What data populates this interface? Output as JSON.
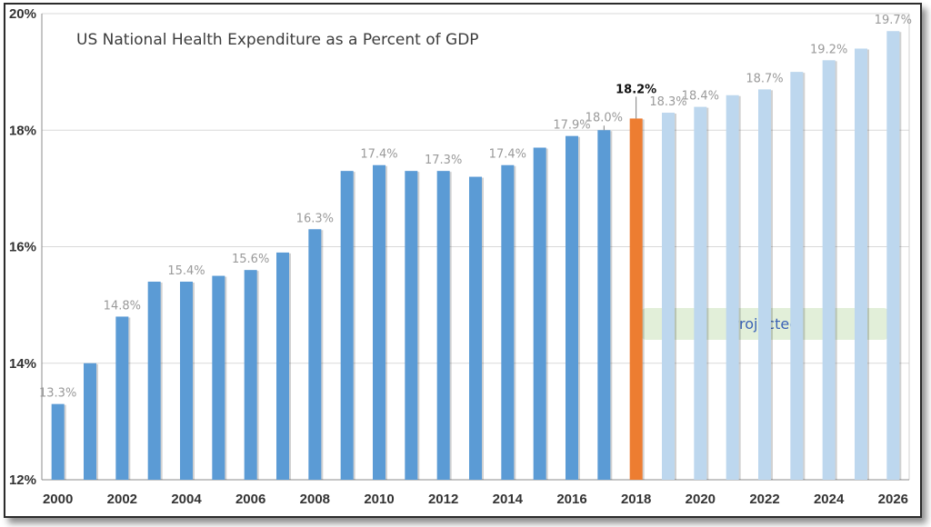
{
  "chart_data": {
    "type": "bar",
    "title": "US National Health Expenditure as a Percent of GDP",
    "xlabel": "",
    "ylabel": "",
    "ylim": [
      12,
      20
    ],
    "y_ticks": [
      "12%",
      "14%",
      "16%",
      "18%",
      "20%"
    ],
    "grid": "horizontal",
    "categories": [
      "2000",
      "2001",
      "2002",
      "2003",
      "2004",
      "2005",
      "2006",
      "2007",
      "2008",
      "2009",
      "2010",
      "2011",
      "2012",
      "2013",
      "2014",
      "2015",
      "2016",
      "2017",
      "2018",
      "2019",
      "2020",
      "2021",
      "2022",
      "2023",
      "2024",
      "2025",
      "2026"
    ],
    "x_tick_labels": [
      "2000",
      "2002",
      "2004",
      "2006",
      "2008",
      "2010",
      "2012",
      "2014",
      "2016",
      "2018",
      "2020",
      "2022",
      "2024",
      "2026"
    ],
    "values": [
      13.3,
      14.0,
      14.8,
      15.4,
      15.4,
      15.5,
      15.6,
      15.9,
      16.3,
      17.3,
      17.4,
      17.3,
      17.3,
      17.2,
      17.4,
      17.7,
      17.9,
      18.0,
      18.2,
      18.3,
      18.4,
      18.6,
      18.7,
      19.0,
      19.2,
      19.4,
      19.7
    ],
    "data_labels": {
      "2000": "13.3%",
      "2002": "14.8%",
      "2004": "15.4%",
      "2006": "15.6%",
      "2008": "16.3%",
      "2010": "17.4%",
      "2012": "17.3%",
      "2014": "17.4%",
      "2016": "17.9%",
      "2017": "18.0%",
      "2018": "18.2%",
      "2019": "18.3%",
      "2020": "18.4%",
      "2022": "18.7%",
      "2024": "19.2%",
      "2026": "19.7%"
    },
    "highlight_category": "2018",
    "projected_from": "2019",
    "annotation": "Projected",
    "colors": {
      "actual": "#5b9bd5",
      "highlight": "#ed7d31",
      "projected": "#bdd7ee",
      "annotation_box": "#e2efd9",
      "annotation_text": "#3a62b6"
    }
  }
}
